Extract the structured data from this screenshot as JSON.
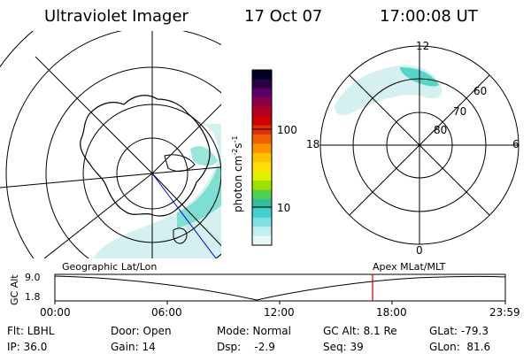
{
  "header": {
    "title": "Ultraviolet Imager",
    "date": "17 Oct 07",
    "time": "17:00:08 UT"
  },
  "colorbar": {
    "unit_label": "photon cm",
    "unit_exp1": "-2",
    "unit_mid": "s",
    "unit_exp2": "-1",
    "ticks": [
      "100",
      "10"
    ],
    "colors": [
      "#000022",
      "#2a0044",
      "#5a0066",
      "#8a0044",
      "#b00020",
      "#d00000",
      "#e03000",
      "#f06000",
      "#ff9000",
      "#ffc000",
      "#ffe000",
      "#e0f000",
      "#a0e000",
      "#50d050",
      "#30c0a0",
      "#40d0d0",
      "#80e0e0",
      "#c0f0f0",
      "#e8f8f8"
    ]
  },
  "polar_plot": {
    "mlt_labels": {
      "top": "12",
      "left": "18",
      "right": "6",
      "bottom": "0"
    },
    "mlat_labels": [
      "60",
      "70",
      "80"
    ]
  },
  "timeline": {
    "ylabel": "GC Alt",
    "yticks": [
      "9.0",
      "1.8"
    ],
    "left_caption": "Geographic Lat/Lon",
    "right_caption": "Apex MLat/MLT",
    "xticks": [
      "00:00",
      "06:00",
      "12:00",
      "18:00",
      "23:59"
    ],
    "current_marker_time": "17:00"
  },
  "footer": {
    "filter": "Flt: LBHL",
    "door": "Door: Open",
    "mode": "Mode: Normal",
    "gc_alt": "GC Alt: 8.1 Re",
    "glat": "GLat: -79.3",
    "ip": "IP: 36.0",
    "gain": "Gain: 14",
    "dsp": "Dsp:    -2.9",
    "seq": "Seq: 39",
    "glon": "GLon:  81.6"
  },
  "colors": {
    "map_line": "#000000",
    "projection_line": "#0000ff",
    "current_time_marker": "#cc0000",
    "aurora_light": "#bfeaea",
    "aurora_mid": "#3fd0c0"
  }
}
